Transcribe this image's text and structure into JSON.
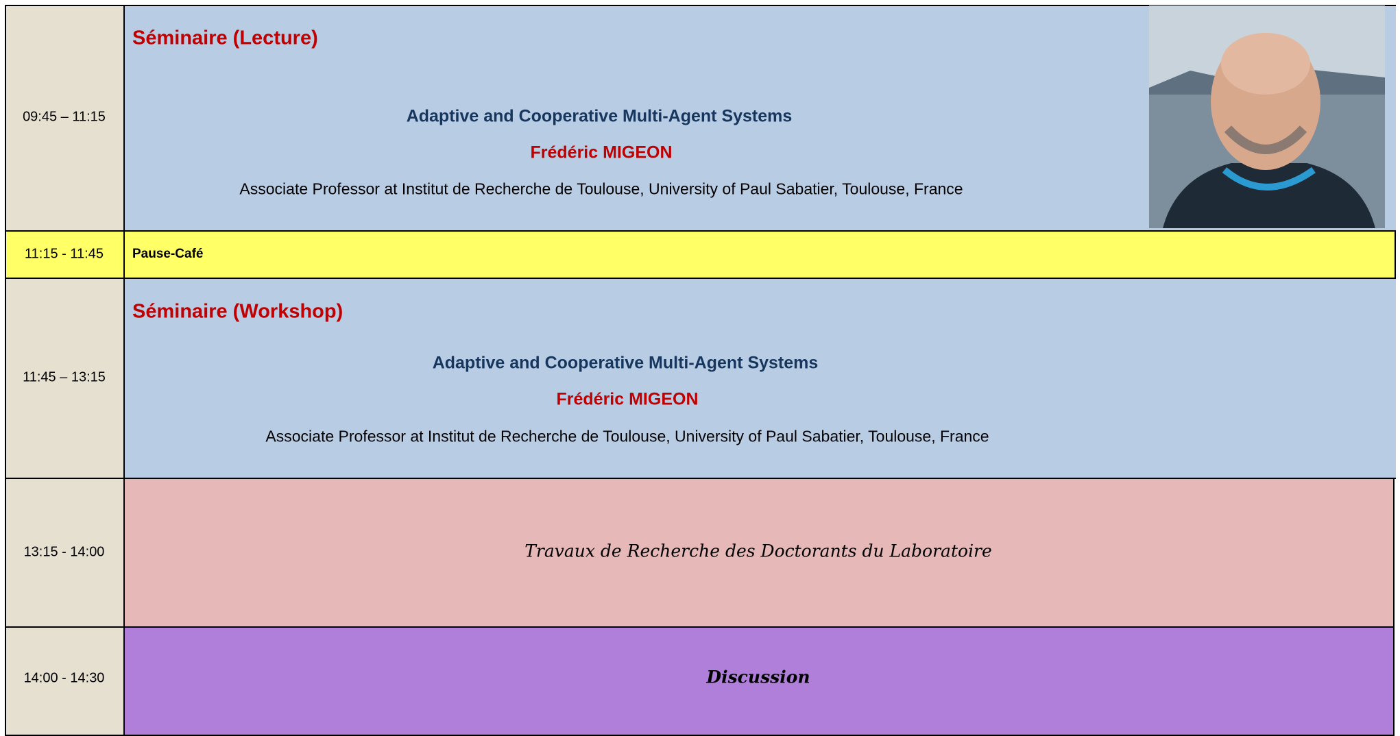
{
  "rows": [
    {
      "time": "09:45 – 11:15",
      "heading": "Séminaire (Lecture)",
      "title": "Adaptive and Cooperative Multi-Agent Systems",
      "speaker": "Frédéric MIGEON",
      "affiliation": "Associate Professor at Institut de Recherche de Toulouse, University of Paul Sabatier, Toulouse, France"
    },
    {
      "time": "11:15 - 11:45",
      "label": "Pause-Café"
    },
    {
      "time": "11:45 – 13:15",
      "heading": "Séminaire (Workshop)",
      "title": "Adaptive and Cooperative Multi-Agent Systems",
      "speaker": "Frédéric MIGEON",
      "affiliation": "Associate Professor at Institut de Recherche de Toulouse, University of Paul Sabatier, Toulouse, France"
    },
    {
      "time": "13:15 - 14:00",
      "label": "Travaux de Recherche des Doctorants du Laboratoire"
    },
    {
      "time": "14:00 - 14:30",
      "label": "Discussion"
    }
  ]
}
